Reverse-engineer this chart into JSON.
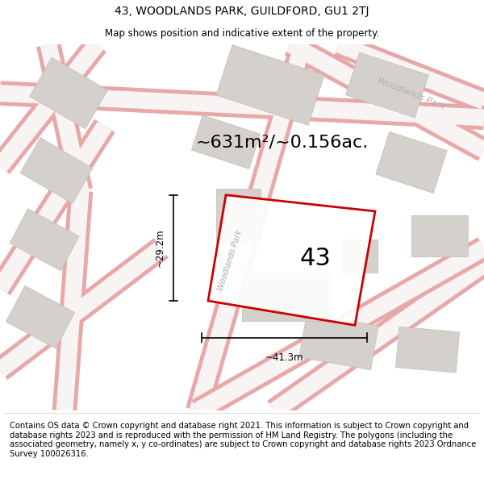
{
  "title": "43, WOODLANDS PARK, GUILDFORD, GU1 2TJ",
  "subtitle": "Map shows position and indicative extent of the property.",
  "area_label": "~631m²/~0.156ac.",
  "number_label": "43",
  "dim_h": "~41.3m",
  "dim_v": "~29.2m",
  "street_label": "Woodlands Park",
  "footer": "Contains OS data © Crown copyright and database right 2021. This information is subject to Crown copyright and database rights 2023 and is reproduced with the permission of HM Land Registry. The polygons (including the associated geometry, namely x, y co-ordinates) are subject to Crown copyright and database rights 2023 Ordnance Survey 100026316.",
  "bg_color": "#f8f8f8",
  "map_bg": "#f2f0ee",
  "road_color": "#e8a8a8",
  "road_fill": "#f8f4f4",
  "building_color": "#d4d0cc",
  "building_edge": "#c0bcb8",
  "property_color": "#cc0000",
  "title_fontsize": 10,
  "subtitle_fontsize": 8.5,
  "footer_fontsize": 7.2,
  "area_fontsize": 16,
  "number_fontsize": 22
}
